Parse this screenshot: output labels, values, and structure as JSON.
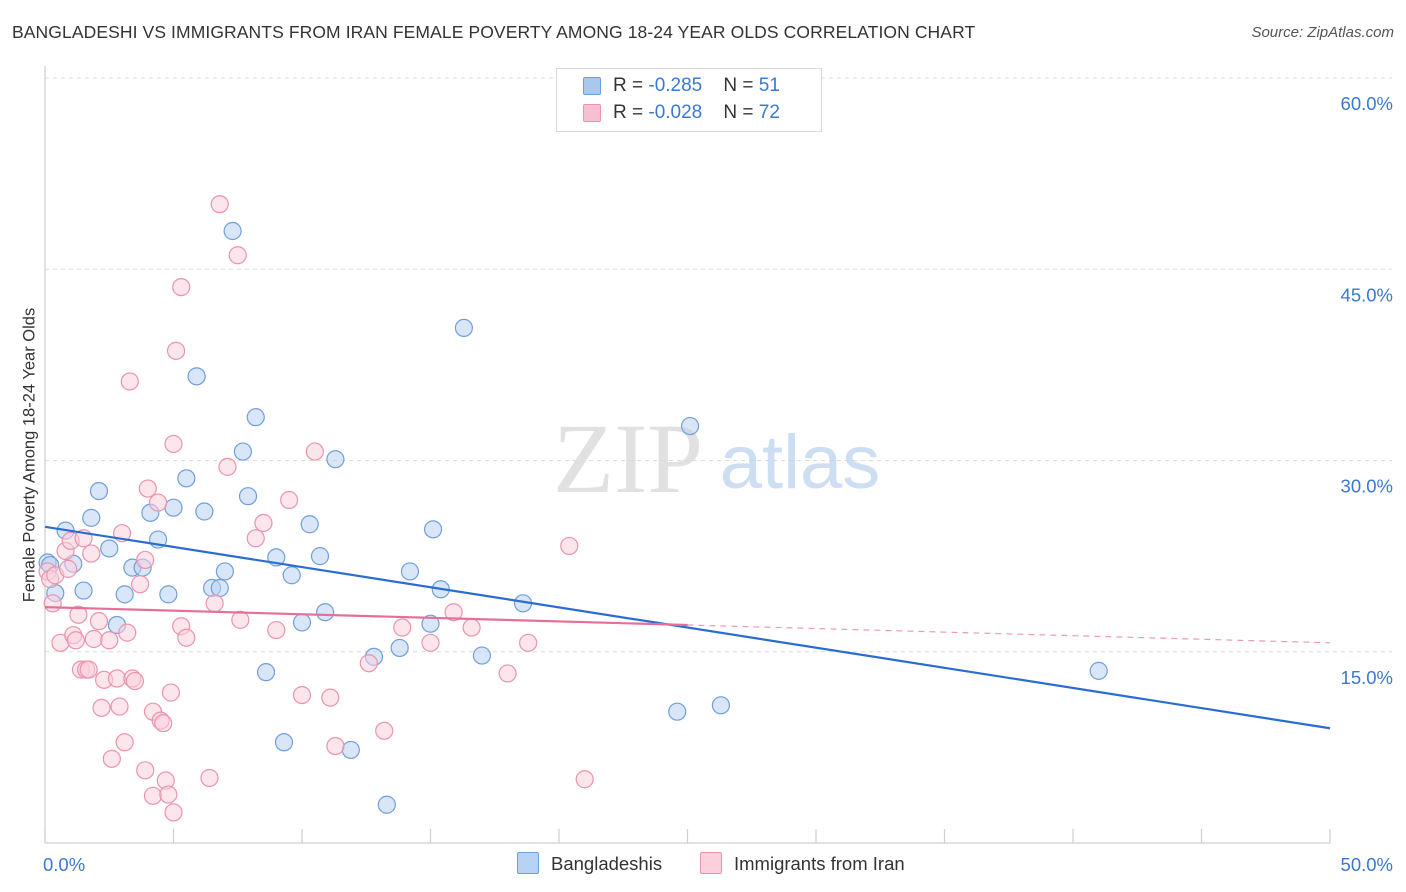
{
  "title": "BANGLADESHI VS IMMIGRANTS FROM IRAN FEMALE POVERTY AMONG 18-24 YEAR OLDS CORRELATION CHART",
  "source": "Source: ZipAtlas.com",
  "watermark": {
    "zip": "ZIP",
    "atlas": "atlas"
  },
  "legend": {
    "rows": [
      {
        "r_label": "R = ",
        "r_value": "-0.285",
        "n_label": "N = ",
        "n_value": "51",
        "color": "#a9c8f0",
        "border": "#6f9fdc"
      },
      {
        "r_label": "R = ",
        "r_value": "-0.028",
        "n_label": "N = ",
        "n_value": "72",
        "color": "#f8bfd0",
        "border": "#eb93ad"
      }
    ]
  },
  "bottom_legend": [
    {
      "label": "Bangladeshis",
      "color": "#b8d2f3",
      "border": "#6f9fdc"
    },
    {
      "label": "Immigrants from Iran",
      "color": "#fbd0dc",
      "border": "#eb93ad"
    }
  ],
  "chart_data": {
    "type": "scatter",
    "title": "BANGLADESHI VS IMMIGRANTS FROM IRAN FEMALE POVERTY AMONG 18-24 YEAR OLDS CORRELATION CHART",
    "xlabel": "",
    "ylabel": "Female Poverty Among 18-24 Year Olds",
    "xlim": [
      0,
      50
    ],
    "ylim": [
      0,
      60
    ],
    "x_tick_labels": [
      "0.0%",
      "50.0%"
    ],
    "y_ticks": [
      15,
      30,
      45,
      60
    ],
    "y_tick_labels": [
      "15.0%",
      "30.0%",
      "45.0%",
      "60.0%"
    ],
    "grid": true,
    "series": [
      {
        "name": "Bangladeshis",
        "color": "#6f9fdc",
        "fill": "#b8d2f3",
        "line_color": "#2a6dd2",
        "trend": {
          "x": [
            0,
            50
          ],
          "y": [
            24.8,
            9.0
          ],
          "dashed_from": null
        },
        "points": [
          [
            0.1,
            22.0
          ],
          [
            0.2,
            21.8
          ],
          [
            0.4,
            19.6
          ],
          [
            0.8,
            24.5
          ],
          [
            1.1,
            21.9
          ],
          [
            1.5,
            19.8
          ],
          [
            1.8,
            25.5
          ],
          [
            2.1,
            27.6
          ],
          [
            2.5,
            23.1
          ],
          [
            2.8,
            17.1
          ],
          [
            3.1,
            19.5
          ],
          [
            3.4,
            21.6
          ],
          [
            3.8,
            21.6
          ],
          [
            4.1,
            25.9
          ],
          [
            4.4,
            23.8
          ],
          [
            4.8,
            19.5
          ],
          [
            5.0,
            26.3
          ],
          [
            5.5,
            28.6
          ],
          [
            5.9,
            36.6
          ],
          [
            6.2,
            26.0
          ],
          [
            6.5,
            20.0
          ],
          [
            6.8,
            20.0
          ],
          [
            7.0,
            21.3
          ],
          [
            7.3,
            48.0
          ],
          [
            7.7,
            30.7
          ],
          [
            7.9,
            27.2
          ],
          [
            8.2,
            33.4
          ],
          [
            8.6,
            13.4
          ],
          [
            9.0,
            22.4
          ],
          [
            9.3,
            7.9
          ],
          [
            9.6,
            21.0
          ],
          [
            10.0,
            17.3
          ],
          [
            10.3,
            25.0
          ],
          [
            10.7,
            22.5
          ],
          [
            10.9,
            18.1
          ],
          [
            11.3,
            30.1
          ],
          [
            11.9,
            7.3
          ],
          [
            12.8,
            14.6
          ],
          [
            13.3,
            3.0
          ],
          [
            13.8,
            15.3
          ],
          [
            14.2,
            21.3
          ],
          [
            15.0,
            17.2
          ],
          [
            15.1,
            24.6
          ],
          [
            15.4,
            19.9
          ],
          [
            16.3,
            40.4
          ],
          [
            17.0,
            14.7
          ],
          [
            18.6,
            18.8
          ],
          [
            24.6,
            10.3
          ],
          [
            25.1,
            32.7
          ],
          [
            26.3,
            10.8
          ],
          [
            41.0,
            13.5
          ]
        ]
      },
      {
        "name": "Immigrants from Iran",
        "color": "#eb93ad",
        "fill": "#fbd0dc",
        "line_color": "#e66f96",
        "trend": {
          "x": [
            0,
            50
          ],
          "y": [
            18.5,
            15.7
          ],
          "dashed_from": 25.0
        },
        "points": [
          [
            0.1,
            21.3
          ],
          [
            0.2,
            20.7
          ],
          [
            0.3,
            18.8
          ],
          [
            0.4,
            21.0
          ],
          [
            0.6,
            15.7
          ],
          [
            0.8,
            22.9
          ],
          [
            0.9,
            21.5
          ],
          [
            1.0,
            23.7
          ],
          [
            1.1,
            16.3
          ],
          [
            1.2,
            15.9
          ],
          [
            1.3,
            17.9
          ],
          [
            1.4,
            13.6
          ],
          [
            1.5,
            23.9
          ],
          [
            1.6,
            13.6
          ],
          [
            1.7,
            13.6
          ],
          [
            1.8,
            22.7
          ],
          [
            1.9,
            16.0
          ],
          [
            2.1,
            17.4
          ],
          [
            2.2,
            10.6
          ],
          [
            2.3,
            12.8
          ],
          [
            2.5,
            15.9
          ],
          [
            2.6,
            6.6
          ],
          [
            2.8,
            12.9
          ],
          [
            2.9,
            10.7
          ],
          [
            3.0,
            24.3
          ],
          [
            3.1,
            7.9
          ],
          [
            3.2,
            16.5
          ],
          [
            3.3,
            36.2
          ],
          [
            3.4,
            12.9
          ],
          [
            3.5,
            12.7
          ],
          [
            3.7,
            20.3
          ],
          [
            3.9,
            22.2
          ],
          [
            3.9,
            5.7
          ],
          [
            4.0,
            27.8
          ],
          [
            4.2,
            3.7
          ],
          [
            4.2,
            10.3
          ],
          [
            4.4,
            26.7
          ],
          [
            4.5,
            9.6
          ],
          [
            4.6,
            9.4
          ],
          [
            4.7,
            4.9
          ],
          [
            4.8,
            3.8
          ],
          [
            4.9,
            11.8
          ],
          [
            5.0,
            2.4
          ],
          [
            5.0,
            31.3
          ],
          [
            5.1,
            38.6
          ],
          [
            5.3,
            17.0
          ],
          [
            5.3,
            43.6
          ],
          [
            5.5,
            16.1
          ],
          [
            6.4,
            5.1
          ],
          [
            6.6,
            18.8
          ],
          [
            6.8,
            50.1
          ],
          [
            7.1,
            29.5
          ],
          [
            7.5,
            46.1
          ],
          [
            7.6,
            17.5
          ],
          [
            8.2,
            23.9
          ],
          [
            8.5,
            25.1
          ],
          [
            9.0,
            16.7
          ],
          [
            9.5,
            26.9
          ],
          [
            10.0,
            11.6
          ],
          [
            10.5,
            30.7
          ],
          [
            11.1,
            11.4
          ],
          [
            11.3,
            7.6
          ],
          [
            12.6,
            14.1
          ],
          [
            13.2,
            8.8
          ],
          [
            13.9,
            16.9
          ],
          [
            15.0,
            15.7
          ],
          [
            15.9,
            18.1
          ],
          [
            16.6,
            16.9
          ],
          [
            18.0,
            13.3
          ],
          [
            18.8,
            15.7
          ],
          [
            20.4,
            23.3
          ],
          [
            21.0,
            5.0
          ]
        ]
      }
    ]
  }
}
